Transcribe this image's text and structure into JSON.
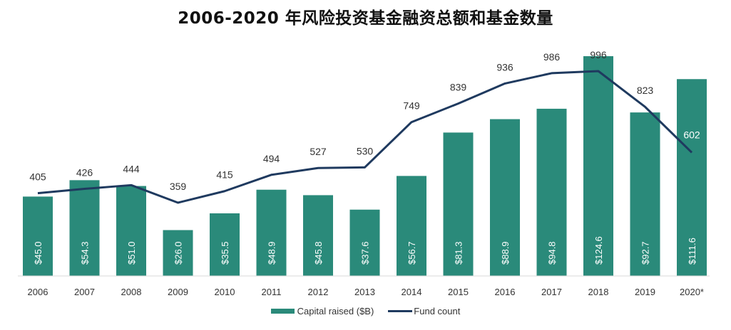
{
  "chart_data": {
    "type": "bar",
    "title": "2006-2020 年风险投资基金融资总额和基金数量",
    "xlabel": "",
    "ylabel": "",
    "categories": [
      "2006",
      "2007",
      "2008",
      "2009",
      "2010",
      "2011",
      "2012",
      "2013",
      "2014",
      "2015",
      "2016",
      "2017",
      "2018",
      "2019",
      "2020*"
    ],
    "series": [
      {
        "name": "Capital raised ($B)",
        "type": "bar",
        "color": "#2a8a7a",
        "values": [
          45.0,
          54.3,
          51.0,
          26.0,
          35.5,
          48.9,
          45.8,
          37.6,
          56.7,
          81.3,
          88.9,
          94.8,
          124.6,
          92.7,
          111.6
        ],
        "labels": [
          "$45.0",
          "$54.3",
          "$51.0",
          "$26.0",
          "$35.5",
          "$48.9",
          "$45.8",
          "$37.6",
          "$56.7",
          "$81.3",
          "$88.9",
          "$94.8",
          "$124.6",
          "$92.7",
          "$111.6"
        ]
      },
      {
        "name": "Fund count",
        "type": "line",
        "color": "#1f3a5f",
        "values": [
          405,
          426,
          444,
          359,
          415,
          494,
          527,
          530,
          749,
          839,
          936,
          986,
          996,
          823,
          602
        ],
        "labels": [
          "405",
          "426",
          "444",
          "359",
          "415",
          "494",
          "527",
          "530",
          "749",
          "839",
          "936",
          "986",
          "996",
          "823",
          "602"
        ]
      }
    ],
    "ylim": [
      0,
      130
    ],
    "y2lim": [
      0,
      1050
    ],
    "grid": false,
    "legend": "bottom-center"
  },
  "legend": {
    "bar_label": "Capital raised ($B)",
    "line_label": "Fund count"
  }
}
